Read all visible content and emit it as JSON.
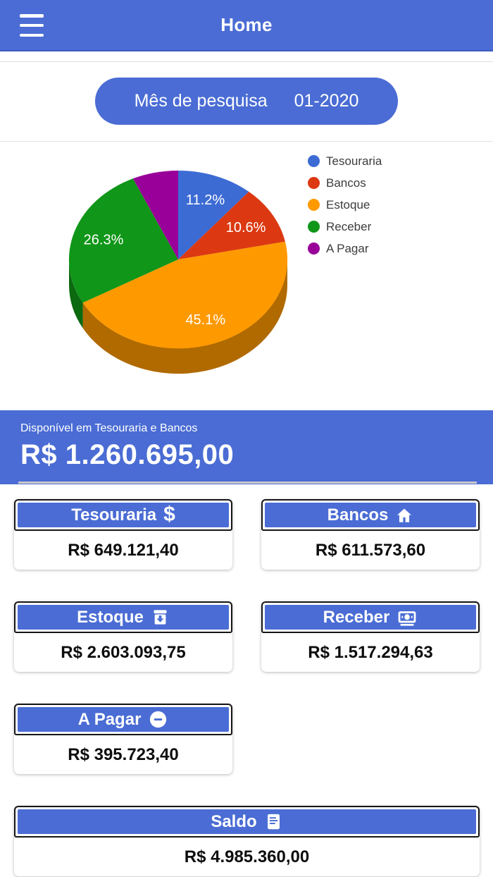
{
  "header": {
    "title": "Home"
  },
  "search_pill": {
    "label": "Mês de pesquisa",
    "value": "01-2020"
  },
  "chart_data": {
    "type": "pie",
    "is3D": true,
    "legend_position": "right",
    "min_label_pct": 8,
    "slices": [
      {
        "label": "Tesouraria",
        "pct": 11.2,
        "display_pct": "11.2%",
        "value": "R$ 649.121,40",
        "color": "#3c6bd4",
        "dark": "#2a4b95"
      },
      {
        "label": "Bancos",
        "pct": 10.6,
        "display_pct": "10.6%",
        "value": "R$ 611.573,60",
        "color": "#dc3912",
        "dark": "#9a280d"
      },
      {
        "label": "Estoque",
        "pct": 45.1,
        "display_pct": "45.1%",
        "value": "R$ 2.603.093,75",
        "color": "#ff9900",
        "dark": "#b06a00"
      },
      {
        "label": "Receber",
        "pct": 26.3,
        "display_pct": "26.3%",
        "value": "R$ 1.517.294,63",
        "color": "#109618",
        "dark": "#0b690f"
      },
      {
        "label": "A Pagar",
        "pct": 6.8,
        "display_pct": "6.8%",
        "value": "R$ 395.723,40",
        "color": "#990099",
        "dark": "#6b006b"
      }
    ]
  },
  "banner": {
    "caption": "Disponível em Tesouraria e Bancos",
    "amount": "R$ 1.260.695,00"
  },
  "cards": [
    {
      "id": "tesouraria",
      "label": "Tesouraria",
      "icon": "dollar-icon",
      "value": "R$ 649.121,40",
      "size": "half"
    },
    {
      "id": "bancos",
      "label": "Bancos",
      "icon": "home-icon",
      "value": "R$ 611.573,60",
      "size": "half"
    },
    {
      "id": "estoque",
      "label": "Estoque",
      "icon": "archive-icon",
      "value": "R$ 2.603.093,75",
      "size": "half"
    },
    {
      "id": "receber",
      "label": "Receber",
      "icon": "cash-icon",
      "value": "R$ 1.517.294,63",
      "size": "half"
    },
    {
      "id": "a-pagar",
      "label": "A Pagar",
      "icon": "remove-circle-icon",
      "value": "R$ 395.723,40",
      "size": "half"
    },
    {
      "id": "saldo",
      "label": "Saldo",
      "icon": "document-icon",
      "value": "R$ 4.985.360,00",
      "size": "full"
    }
  ],
  "colors": {
    "primary": "#4a6cd4",
    "header_border": "#3d5bc0",
    "divider": "#e2e2e2",
    "panel_line": "#c9c9c9",
    "card_border": "#161616",
    "value_text": "#0d0d0d",
    "legend_text": "#3c3c3c"
  }
}
